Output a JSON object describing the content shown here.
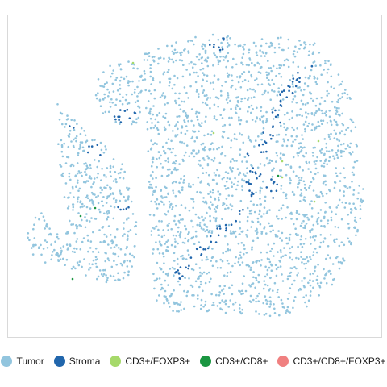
{
  "chart_data": {
    "type": "scatter",
    "title": "",
    "xlabel": "",
    "ylabel": "",
    "grid": false,
    "axes_ticks": false,
    "legend_position": "bottom",
    "series": [
      {
        "name": "Tumor",
        "color": "#92c5de"
      },
      {
        "name": "Stroma",
        "color": "#2166ac"
      },
      {
        "name": "CD3+/FOXP3+",
        "color": "#a6d96a"
      },
      {
        "name": "CD3+/CD8+",
        "color": "#1a9641"
      },
      {
        "name": "CD3+/CD8+/FOXP3+",
        "color": "#f08080"
      }
    ]
  }
}
